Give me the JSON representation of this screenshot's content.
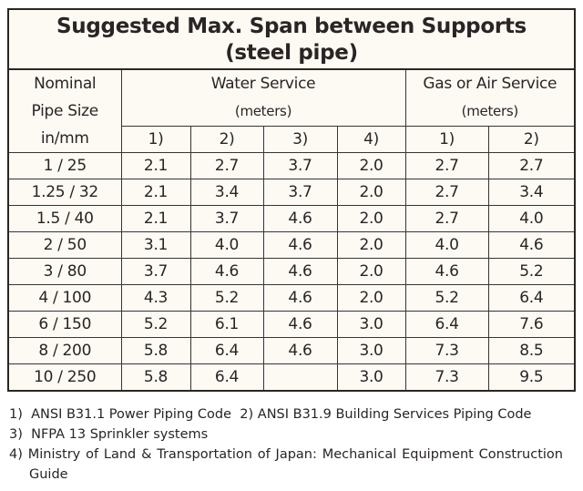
{
  "title": {
    "line1": "Suggested Max. Span between Supports",
    "line2": "(steel pipe)"
  },
  "header": {
    "size_col": [
      "Nominal",
      "Pipe Size",
      "in/mm"
    ],
    "water": {
      "label": "Water Service",
      "unit": "(meters)",
      "cols": [
        "1)",
        "2)",
        "3)",
        "4)"
      ]
    },
    "gas": {
      "label": "Gas or Air Service",
      "unit": "(meters)",
      "cols": [
        "1)",
        "2)"
      ]
    }
  },
  "rows": [
    [
      "1 / 25",
      "2.1",
      "2.7",
      "3.7",
      "2.0",
      "2.7",
      "2.7"
    ],
    [
      "1.25 / 32",
      "2.1",
      "3.4",
      "3.7",
      "2.0",
      "2.7",
      "3.4"
    ],
    [
      "1.5 / 40",
      "2.1",
      "3.7",
      "4.6",
      "2.0",
      "2.7",
      "4.0"
    ],
    [
      "2 / 50",
      "3.1",
      "4.0",
      "4.6",
      "2.0",
      "4.0",
      "4.6"
    ],
    [
      "3 / 80",
      "3.7",
      "4.6",
      "4.6",
      "2.0",
      "4.6",
      "5.2"
    ],
    [
      "4 / 100",
      "4.3",
      "5.2",
      "4.6",
      "2.0",
      "5.2",
      "6.4"
    ],
    [
      "6 / 150",
      "5.2",
      "6.1",
      "4.6",
      "3.0",
      "6.4",
      "7.6"
    ],
    [
      "8 / 200",
      "5.8",
      "6.4",
      "4.6",
      "3.0",
      "7.3",
      "8.5"
    ],
    [
      "10 / 250",
      "5.8",
      "6.4",
      "",
      "3.0",
      "7.3",
      "9.5"
    ]
  ],
  "footnotes": [
    "1)  ANSI B31.1 Power Piping Code",
    "2) ANSI B31.9 Building Services Piping Code",
    "3)  NFPA 13 Sprinkler systems",
    "4)  Ministry of Land & Transportation of Japan: Mechanical Equipment Construction Guide"
  ]
}
